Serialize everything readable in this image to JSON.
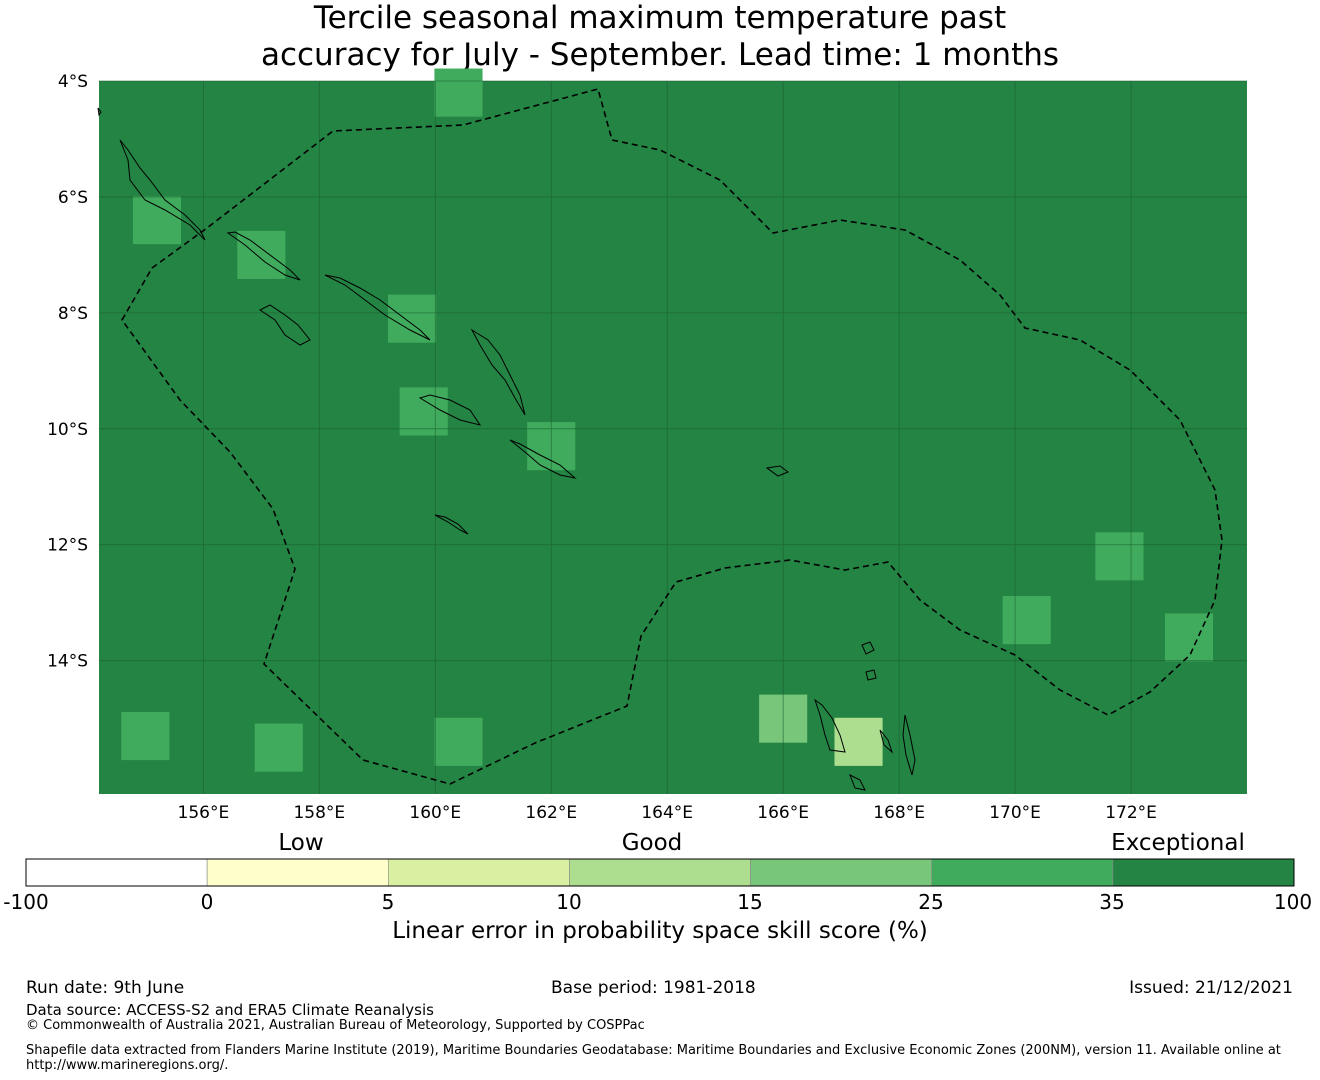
{
  "title": {
    "line1": "Tercile seasonal maximum temperature past",
    "line2": "accuracy for July - September. Lead time: 1 months"
  },
  "map": {
    "lon_range": [
      154.2,
      174.0
    ],
    "lat_range": [
      -16.3,
      -4.0
    ],
    "grid_cell_deg": 0.83,
    "lat_ticks": [
      "4°S",
      "6°S",
      "8°S",
      "10°S",
      "12°S",
      "14°S"
    ],
    "lon_ticks": [
      "156°E",
      "158°E",
      "160°E",
      "162°E",
      "164°E",
      "166°E",
      "168°E",
      "170°E",
      "172°E"
    ],
    "base_category": "35-100",
    "other_cells": [
      {
        "lon": 160.4,
        "lat": -4.2,
        "cat": "25-35"
      },
      {
        "lon": 155.2,
        "lat": -6.4,
        "cat": "25-35"
      },
      {
        "lon": 157.0,
        "lat": -7.0,
        "cat": "25-35"
      },
      {
        "lon": 159.6,
        "lat": -8.1,
        "cat": "25-35"
      },
      {
        "lon": 159.8,
        "lat": -9.7,
        "cat": "25-35"
      },
      {
        "lon": 162.0,
        "lat": -10.3,
        "cat": "25-35"
      },
      {
        "lon": 155.0,
        "lat": -15.3,
        "cat": "25-35"
      },
      {
        "lon": 157.3,
        "lat": -15.5,
        "cat": "25-35"
      },
      {
        "lon": 160.4,
        "lat": -15.4,
        "cat": "25-35"
      },
      {
        "lon": 166.0,
        "lat": -15.0,
        "cat": "15-25"
      },
      {
        "lon": 167.3,
        "lat": -15.4,
        "cat": "10-15"
      },
      {
        "lon": 171.8,
        "lat": -12.2,
        "cat": "25-35"
      },
      {
        "lon": 170.2,
        "lat": -13.3,
        "cat": "25-35"
      },
      {
        "lon": 173.0,
        "lat": -13.6,
        "cat": "25-35"
      }
    ],
    "eez_boundary": "dashed"
  },
  "legend": {
    "qualitative": [
      "Low",
      "Good",
      "Exceptional"
    ],
    "tick_labels": [
      "-100",
      "0",
      "5",
      "10",
      "15",
      "25",
      "35",
      "100"
    ],
    "bins": [
      {
        "range": "-100-0",
        "color": "#ffffff"
      },
      {
        "range": "0-5",
        "color": "#ffffcc"
      },
      {
        "range": "5-10",
        "color": "#d9f0a3"
      },
      {
        "range": "10-15",
        "color": "#addd8e"
      },
      {
        "range": "15-25",
        "color": "#78c679"
      },
      {
        "range": "25-35",
        "color": "#41ab5d"
      },
      {
        "range": "35-100",
        "color": "#238443"
      }
    ],
    "title": "Linear error in probability space skill score (%)"
  },
  "footer": {
    "run_date": "Run date: 9th June",
    "base_period": "Base period: 1981-2018",
    "issued": "Issued: 21/12/2021",
    "data_source": "Data source: ACCESS-S2 and ERA5 Climate Reanalysis",
    "copyright": "© Commonwealth of Australia 2021, Australian Bureau of Meteorology, Supported by COSPPac",
    "shapefile": "Shapefile data extracted from Flanders Marine Institute (2019), Maritime Boundaries Geodatabase: Maritime Boundaries and Exclusive Economic Zones (200NM), version 11. Available online at",
    "url": "http://www.marineregions.org/."
  }
}
